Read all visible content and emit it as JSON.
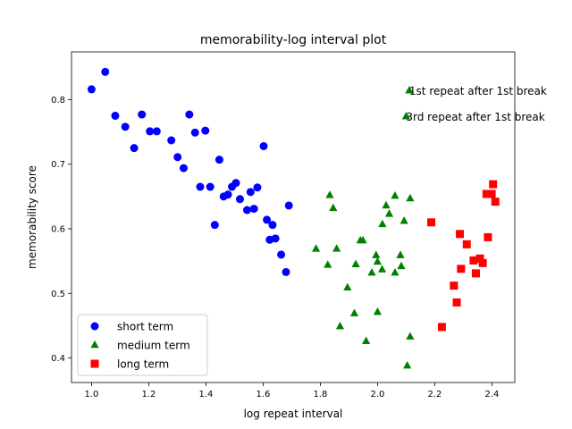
{
  "chart_data": {
    "type": "scatter",
    "title": "memorability-log interval plot",
    "xlabel": "log repeat interval",
    "ylabel": "memorability score",
    "xlim": [
      0.93,
      2.48
    ],
    "ylim": [
      0.362,
      0.874
    ],
    "xticks": [
      1.0,
      1.2,
      1.4,
      1.6,
      1.8,
      2.0,
      2.2,
      2.4
    ],
    "xtick_labels": [
      "1.0",
      "1.2",
      "1.4",
      "1.6",
      "1.8",
      "2.0",
      "2.2",
      "2.4"
    ],
    "yticks": [
      0.4,
      0.5,
      0.6,
      0.7,
      0.8
    ],
    "ytick_labels": [
      "0.4",
      "0.5",
      "0.6",
      "0.7",
      "0.8"
    ],
    "grid": false,
    "legend_position": "lower-left",
    "series": [
      {
        "name": "short term",
        "marker": "circle",
        "color": "#0000ff",
        "points": [
          [
            1.0,
            0.816
          ],
          [
            1.048,
            0.843
          ],
          [
            1.083,
            0.775
          ],
          [
            1.118,
            0.758
          ],
          [
            1.149,
            0.725
          ],
          [
            1.176,
            0.777
          ],
          [
            1.204,
            0.751
          ],
          [
            1.228,
            0.751
          ],
          [
            1.279,
            0.737
          ],
          [
            1.301,
            0.711
          ],
          [
            1.322,
            0.694
          ],
          [
            1.342,
            0.777
          ],
          [
            1.362,
            0.749
          ],
          [
            1.38,
            0.665
          ],
          [
            1.398,
            0.752
          ],
          [
            1.415,
            0.665
          ],
          [
            1.431,
            0.606
          ],
          [
            1.447,
            0.707
          ],
          [
            1.462,
            0.65
          ],
          [
            1.477,
            0.653
          ],
          [
            1.491,
            0.665
          ],
          [
            1.505,
            0.671
          ],
          [
            1.519,
            0.646
          ],
          [
            1.544,
            0.629
          ],
          [
            1.556,
            0.657
          ],
          [
            1.568,
            0.631
          ],
          [
            1.58,
            0.664
          ],
          [
            1.602,
            0.728
          ],
          [
            1.613,
            0.614
          ],
          [
            1.623,
            0.583
          ],
          [
            1.633,
            0.606
          ],
          [
            1.643,
            0.585
          ],
          [
            1.663,
            0.56
          ],
          [
            1.68,
            0.533
          ],
          [
            1.69,
            0.636
          ]
        ]
      },
      {
        "name": "medium term",
        "marker": "triangle",
        "color": "#008000",
        "points": [
          [
            1.785,
            0.569
          ],
          [
            1.826,
            0.544
          ],
          [
            1.833,
            0.652
          ],
          [
            1.845,
            0.632
          ],
          [
            1.857,
            0.569
          ],
          [
            1.869,
            0.449
          ],
          [
            1.895,
            0.509
          ],
          [
            1.919,
            0.469
          ],
          [
            1.924,
            0.545
          ],
          [
            1.94,
            0.582
          ],
          [
            1.949,
            0.582
          ],
          [
            1.96,
            0.426
          ],
          [
            1.98,
            0.532
          ],
          [
            1.995,
            0.559
          ],
          [
            2.0,
            0.549
          ],
          [
            2.0,
            0.471
          ],
          [
            2.016,
            0.537
          ],
          [
            2.017,
            0.607
          ],
          [
            2.03,
            0.636
          ],
          [
            2.041,
            0.623
          ],
          [
            2.061,
            0.651
          ],
          [
            2.061,
            0.532
          ],
          [
            2.08,
            0.559
          ],
          [
            2.083,
            0.542
          ],
          [
            2.093,
            0.612
          ],
          [
            2.104,
            0.388
          ],
          [
            2.114,
            0.433
          ],
          [
            2.114,
            0.647
          ],
          [
            2.1,
            0.774
          ],
          [
            2.111,
            0.814
          ]
        ]
      },
      {
        "name": "long term",
        "marker": "square",
        "color": "#ff0000",
        "points": [
          [
            2.188,
            0.61
          ],
          [
            2.225,
            0.448
          ],
          [
            2.267,
            0.512
          ],
          [
            2.277,
            0.486
          ],
          [
            2.288,
            0.592
          ],
          [
            2.292,
            0.538
          ],
          [
            2.312,
            0.576
          ],
          [
            2.336,
            0.551
          ],
          [
            2.344,
            0.531
          ],
          [
            2.358,
            0.554
          ],
          [
            2.368,
            0.547
          ],
          [
            2.381,
            0.654
          ],
          [
            2.386,
            0.587
          ],
          [
            2.399,
            0.654
          ],
          [
            2.404,
            0.669
          ],
          [
            2.412,
            0.642
          ]
        ]
      }
    ],
    "annotations": [
      {
        "text": "1st repeat after 1st break",
        "x": 2.111,
        "y": 0.814
      },
      {
        "text": "3rd repeat after 1st break",
        "x": 2.1,
        "y": 0.774
      }
    ]
  }
}
